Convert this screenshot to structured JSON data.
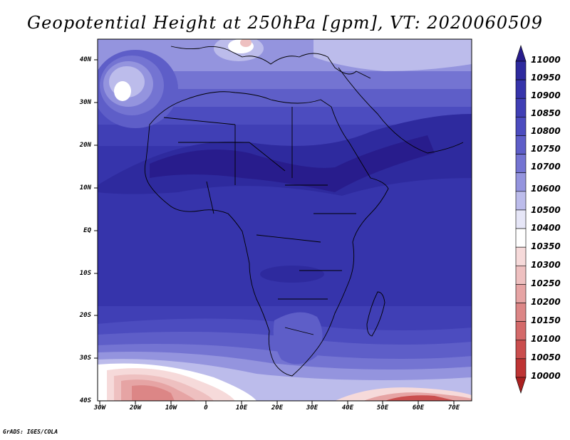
{
  "title": "Geopotential Height at 250hPa [gpm], VT: 2020060509",
  "map": {
    "lat_labels": [
      "40N",
      "30N",
      "20N",
      "10N",
      "EQ",
      "10S",
      "20S",
      "30S",
      "40S"
    ],
    "lon_labels": [
      "30W",
      "20W",
      "10W",
      "0",
      "10E",
      "20E",
      "30E",
      "40E",
      "50E",
      "60E",
      "70E"
    ]
  },
  "colorbar": {
    "levels": [
      "11000",
      "10950",
      "10900",
      "10850",
      "10800",
      "10750",
      "10700",
      "10600",
      "10500",
      "10400",
      "10350",
      "10300",
      "10250",
      "10200",
      "10150",
      "10100",
      "10050",
      "10000"
    ],
    "colors": [
      "#281c8c",
      "#2e2a9e",
      "#3634ab",
      "#403fb5",
      "#4c4cbf",
      "#5e5ec8",
      "#7474d2",
      "#9494de",
      "#bcbceb",
      "#e6e6f7",
      "#ffffff",
      "#f6dada",
      "#eec0c0",
      "#e6a4a4",
      "#dc8686",
      "#d46a6a",
      "#ca4e4e",
      "#be3434",
      "#aa2020"
    ]
  },
  "credit": "GrADS: IGES/COLA"
}
